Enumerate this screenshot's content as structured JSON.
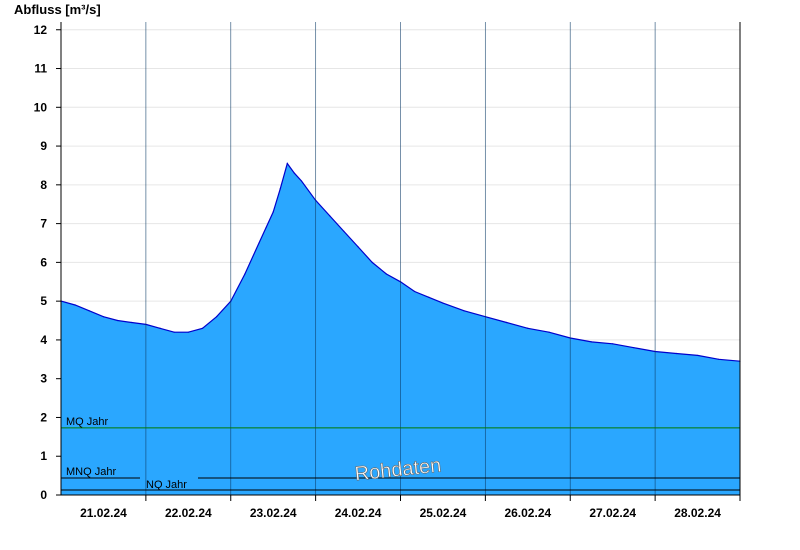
{
  "chart_data": {
    "type": "area",
    "title": "",
    "ylabel": "Abfluss [m³/s]",
    "xlabel": "",
    "ylim": [
      0,
      12.2
    ],
    "yticks": [
      0,
      1,
      2,
      3,
      4,
      5,
      6,
      7,
      8,
      9,
      10,
      11,
      12
    ],
    "x_range": [
      "2024-02-20T12:00",
      "2024-02-28T12:00"
    ],
    "x_ticks": [
      {
        "label": "21.02.24",
        "day": 21
      },
      {
        "label": "22.02.24",
        "day": 22
      },
      {
        "label": "23.02.24",
        "day": 23
      },
      {
        "label": "24.02.24",
        "day": 24
      },
      {
        "label": "25.02.24",
        "day": 25
      },
      {
        "label": "26.02.24",
        "day": 26
      },
      {
        "label": "27.02.24",
        "day": 27
      },
      {
        "label": "28.02.24",
        "day": 28
      }
    ],
    "grid": "horizontal",
    "fill_color": "#2aa7ff",
    "line_color": "#0000cc",
    "series": [
      {
        "x": [
          "2024-02-20T12:00",
          "2024-02-20T16:00",
          "2024-02-20T20:00",
          "2024-02-21T00:00",
          "2024-02-21T04:00",
          "2024-02-21T08:00",
          "2024-02-21T12:00",
          "2024-02-21T16:00",
          "2024-02-21T20:00",
          "2024-02-22T00:00",
          "2024-02-22T04:00",
          "2024-02-22T08:00",
          "2024-02-22T12:00",
          "2024-02-22T16:00",
          "2024-02-22T20:00",
          "2024-02-22T22:00",
          "2024-02-23T00:00",
          "2024-02-23T02:00",
          "2024-02-23T04:00",
          "2024-02-23T06:00",
          "2024-02-23T08:00",
          "2024-02-23T12:00",
          "2024-02-23T16:00",
          "2024-02-23T20:00",
          "2024-02-24T00:00",
          "2024-02-24T04:00",
          "2024-02-24T08:00",
          "2024-02-24T12:00",
          "2024-02-24T16:00",
          "2024-02-24T20:00",
          "2024-02-25T00:00",
          "2024-02-25T06:00",
          "2024-02-25T12:00",
          "2024-02-25T18:00",
          "2024-02-26T00:00",
          "2024-02-26T06:00",
          "2024-02-26T12:00",
          "2024-02-26T18:00",
          "2024-02-27T00:00",
          "2024-02-27T06:00",
          "2024-02-27T12:00",
          "2024-02-27T18:00",
          "2024-02-28T00:00",
          "2024-02-28T06:00",
          "2024-02-28T12:00"
        ],
        "y": [
          5.0,
          4.9,
          4.75,
          4.6,
          4.5,
          4.45,
          4.4,
          4.3,
          4.2,
          4.2,
          4.3,
          4.6,
          5.0,
          5.7,
          6.5,
          6.9,
          7.3,
          7.9,
          8.55,
          8.3,
          8.1,
          7.6,
          7.2,
          6.8,
          6.4,
          6.0,
          5.7,
          5.5,
          5.25,
          5.1,
          4.95,
          4.75,
          4.6,
          4.45,
          4.3,
          4.2,
          4.05,
          3.95,
          3.9,
          3.8,
          3.7,
          3.65,
          3.6,
          3.5,
          3.45
        ]
      }
    ],
    "reference_lines": [
      {
        "label": "MQ Jahr",
        "value": 1.73,
        "color": "#007a00"
      },
      {
        "label": "MNQ Jahr",
        "value": 0.44,
        "color": "#000000"
      },
      {
        "label": "NQ Jahr",
        "value": 0.13,
        "color": "#000000"
      }
    ],
    "watermark": "Rohdaten"
  }
}
